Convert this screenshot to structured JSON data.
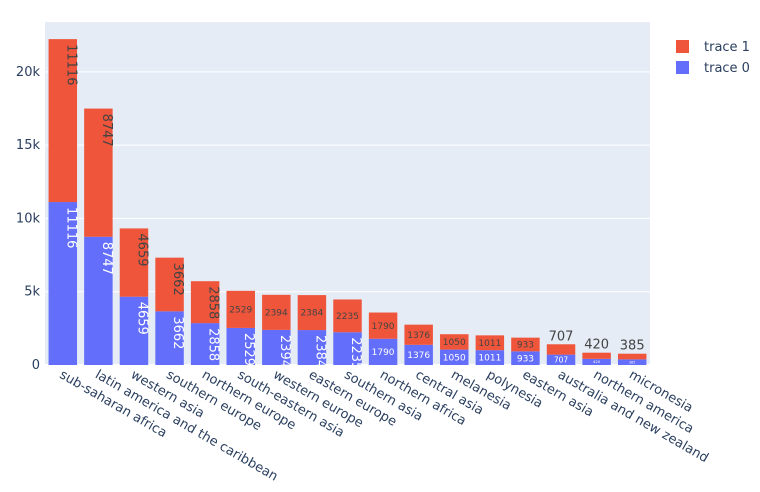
{
  "chart_data": {
    "type": "bar",
    "barmode": "stack",
    "categories": [
      "sub-saharan africa",
      "latin america and the caribbean",
      "western asia",
      "southern europe",
      "northern europe",
      "south-eastern asia",
      "western europe",
      "eastern europe",
      "southern asia",
      "northern africa",
      "central asia",
      "melanesia",
      "polynesia",
      "eastern asia",
      "australia and new zealand",
      "northern america",
      "micronesia"
    ],
    "series": [
      {
        "name": "trace 0",
        "color": "#636efa",
        "values": [
          11116,
          8747,
          4659,
          3662,
          2858,
          2529,
          2394,
          2384,
          2235,
          1790,
          1376,
          1050,
          1011,
          933,
          707,
          420,
          385
        ]
      },
      {
        "name": "trace 1",
        "color": "#EF553B",
        "values": [
          11116,
          8747,
          4659,
          3662,
          2858,
          2529,
          2394,
          2384,
          2235,
          1790,
          1376,
          1050,
          1011,
          933,
          707,
          420,
          385
        ]
      }
    ],
    "ylim": [
      0,
      23400
    ],
    "yticks": [
      0,
      5000,
      10000,
      15000,
      20000
    ],
    "ytick_labels": [
      "0",
      "5k",
      "10k",
      "15k",
      "20k"
    ],
    "legend_position": "top-right",
    "grid": true,
    "plot_background": "#e5ecf6"
  }
}
